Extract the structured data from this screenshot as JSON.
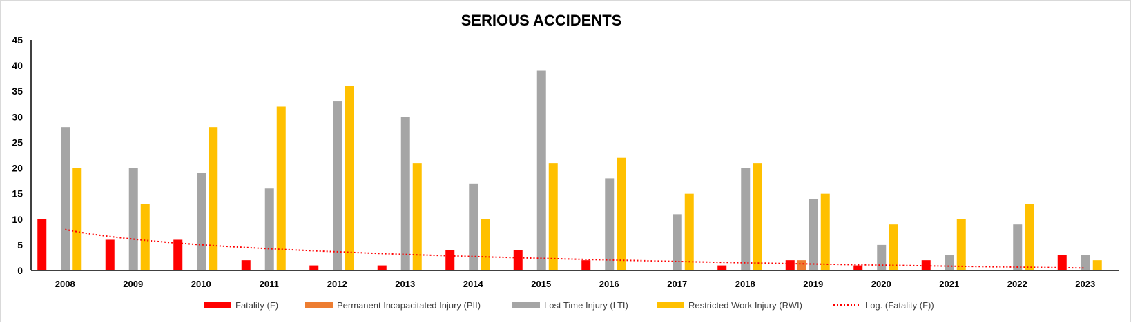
{
  "chart_data": {
    "type": "bar",
    "title": "SERIOUS ACCIDENTS",
    "xlabel": "",
    "ylabel": "",
    "ylim": [
      0,
      45
    ],
    "yticks": [
      0,
      5,
      10,
      15,
      20,
      25,
      30,
      35,
      40,
      45
    ],
    "grid": false,
    "legend_position": "bottom",
    "categories": [
      "2008",
      "2009",
      "2010",
      "2011",
      "2012",
      "2013",
      "2014",
      "2015",
      "2016",
      "2017",
      "2018",
      "2019",
      "2020",
      "2021",
      "2022",
      "2023"
    ],
    "series": [
      {
        "name": "Fatality (F)",
        "color": "#ff0000",
        "values": [
          10,
          6,
          6,
          2,
          1,
          1,
          4,
          4,
          2,
          0,
          1,
          2,
          1,
          2,
          0,
          3
        ]
      },
      {
        "name": "Permanent Incapacitated Injury (PII)",
        "color": "#ed7d31",
        "values": [
          0,
          0,
          0,
          0,
          0,
          0,
          0,
          0,
          0,
          0,
          0,
          2,
          0,
          0,
          0,
          0
        ]
      },
      {
        "name": "Lost Time Injury (LTI)",
        "color": "#a5a5a5",
        "values": [
          28,
          20,
          19,
          16,
          33,
          30,
          17,
          39,
          18,
          11,
          20,
          14,
          5,
          3,
          9,
          3
        ]
      },
      {
        "name": "Restricted Work Injury (RWI)",
        "color": "#ffc000",
        "values": [
          20,
          13,
          28,
          32,
          36,
          21,
          10,
          21,
          22,
          15,
          21,
          15,
          9,
          10,
          13,
          2
        ]
      }
    ],
    "trendline": {
      "name": "Log. (Fatality (F))",
      "type": "logarithmic",
      "of_series": "Fatality (F)",
      "color": "#ff0000",
      "style": "dotted"
    }
  }
}
